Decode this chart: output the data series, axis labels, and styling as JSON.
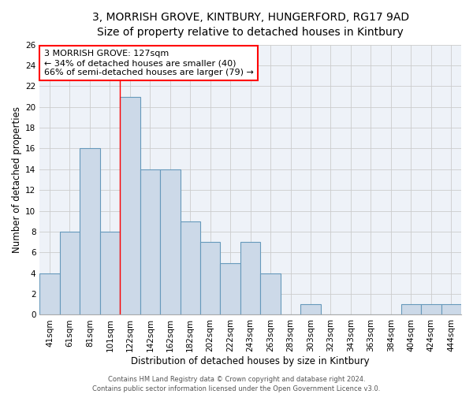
{
  "title_line1": "3, MORRISH GROVE, KINTBURY, HUNGERFORD, RG17 9AD",
  "title_line2": "Size of property relative to detached houses in Kintbury",
  "xlabel": "Distribution of detached houses by size in Kintbury",
  "ylabel": "Number of detached properties",
  "categories": [
    "41sqm",
    "61sqm",
    "81sqm",
    "101sqm",
    "122sqm",
    "142sqm",
    "162sqm",
    "182sqm",
    "202sqm",
    "222sqm",
    "243sqm",
    "263sqm",
    "283sqm",
    "303sqm",
    "323sqm",
    "343sqm",
    "363sqm",
    "384sqm",
    "404sqm",
    "424sqm",
    "444sqm"
  ],
  "values": [
    4,
    8,
    16,
    8,
    21,
    14,
    14,
    9,
    7,
    5,
    7,
    4,
    0,
    1,
    0,
    0,
    0,
    0,
    1,
    1,
    1
  ],
  "bar_color": "#ccd9e8",
  "bar_edge_color": "#6699bb",
  "red_line_index": 4,
  "annotation_text": "3 MORRISH GROVE: 127sqm\n← 34% of detached houses are smaller (40)\n66% of semi-detached houses are larger (79) →",
  "annotation_box_color": "white",
  "annotation_box_edge_color": "red",
  "ylim": [
    0,
    26
  ],
  "yticks": [
    0,
    2,
    4,
    6,
    8,
    10,
    12,
    14,
    16,
    18,
    20,
    22,
    24,
    26
  ],
  "grid_color": "#cccccc",
  "background_color": "#eef2f8",
  "footer_text": "Contains HM Land Registry data © Crown copyright and database right 2024.\nContains public sector information licensed under the Open Government Licence v3.0.",
  "title_fontsize": 10,
  "subtitle_fontsize": 9,
  "axis_label_fontsize": 8.5,
  "tick_fontsize": 7.5,
  "annotation_fontsize": 8
}
